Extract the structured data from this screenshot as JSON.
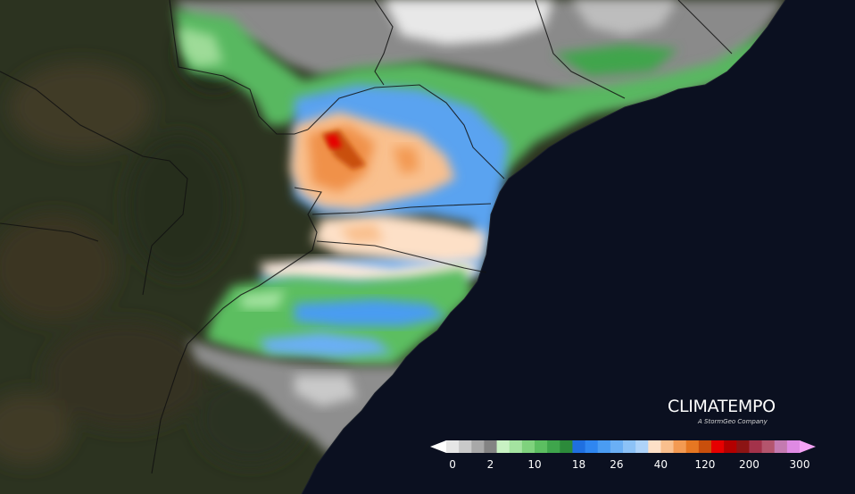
{
  "brand": {
    "name": "CLIMATEMPO",
    "tagline": "A StormGeo Company"
  },
  "legend": {
    "colors": [
      "#ffffff",
      "#e6e6e6",
      "#c9c9c9",
      "#a8a8a8",
      "#838383",
      "#c8f2c3",
      "#a4e3a0",
      "#7fd27d",
      "#5cbe61",
      "#3fa54c",
      "#2c8a3a",
      "#1f6fe0",
      "#2f86f0",
      "#4a9cf2",
      "#6aaff5",
      "#8cc2f7",
      "#aed3f9",
      "#fde0c7",
      "#f9bf8d",
      "#f39a52",
      "#e67722",
      "#c94f0c",
      "#e60000",
      "#b30000",
      "#8c1414",
      "#a3324a",
      "#b4556d",
      "#c47ab0",
      "#df8ae3",
      "#f5a3f5"
    ],
    "labels": [
      {
        "text": "0",
        "at": 1
      },
      {
        "text": "2",
        "at": 4
      },
      {
        "text": "10",
        "at": 7.5
      },
      {
        "text": "18",
        "at": 11
      },
      {
        "text": "26",
        "at": 14
      },
      {
        "text": "40",
        "at": 17.5
      },
      {
        "text": "120",
        "at": 21
      },
      {
        "text": "200",
        "at": 24.5
      },
      {
        "text": "300",
        "at": 28.5
      }
    ]
  }
}
